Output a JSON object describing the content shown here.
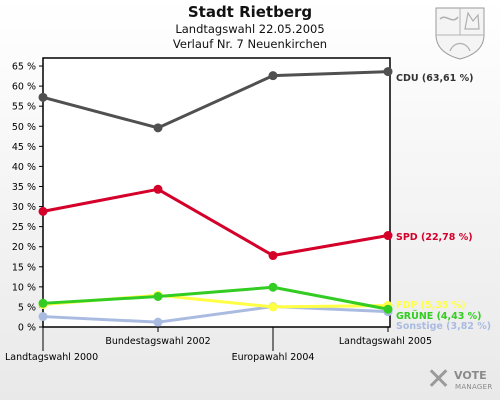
{
  "title": "Stadt Rietberg",
  "subtitle1": "Landtagswahl 22.05.2005",
  "subtitle2": "Verlauf Nr. 7 Neuenkirchen",
  "logo": {
    "line1": "VOTE",
    "line2": "MANAGER"
  },
  "chart_data": {
    "type": "line",
    "title": "Stadt Rietberg",
    "y_unit": "%",
    "ylim": [
      0,
      67
    ],
    "y_ticks": [
      "0 %",
      "5 %",
      "10 %",
      "15 %",
      "20 %",
      "25 %",
      "30 %",
      "35 %",
      "40 %",
      "45 %",
      "50 %",
      "55 %",
      "60 %",
      "65 %"
    ],
    "categories": [
      "Landtagswahl 2000",
      "Bundestagswahl 2002",
      "Europawahl 2004",
      "Landtagswahl 2005"
    ],
    "grid": false,
    "series": [
      {
        "name": "CDU",
        "label": "CDU (63,61 %)",
        "color": "#505050",
        "values": [
          57.2,
          49.6,
          62.6,
          63.61
        ]
      },
      {
        "name": "SPD",
        "label": "SPD (22,78 %)",
        "color": "#d4002a",
        "values": [
          28.8,
          34.3,
          17.8,
          22.78
        ]
      },
      {
        "name": "FDP",
        "label": "FDP (5,35 %)",
        "color": "#ffff44",
        "values": [
          5.6,
          7.9,
          5.0,
          5.35
        ]
      },
      {
        "name": "GRÜNE",
        "label": "GRÜNE (4,43 %)",
        "color": "#33cc22",
        "values": [
          5.9,
          7.6,
          9.9,
          4.43
        ]
      },
      {
        "name": "Sonstige",
        "label": "Sonstige (3,82 %)",
        "color": "#aabbe2",
        "values": [
          2.6,
          1.2,
          5.1,
          3.82
        ]
      }
    ]
  }
}
